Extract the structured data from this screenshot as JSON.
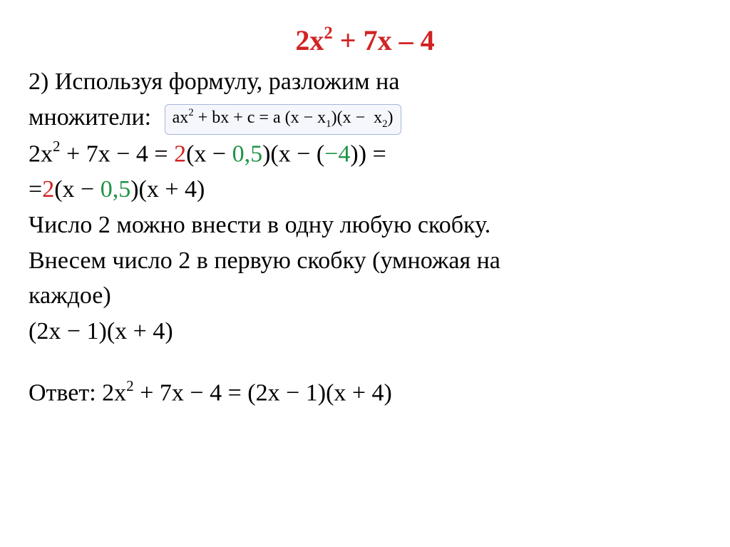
{
  "colors": {
    "red": "#d22323",
    "green": "#1f9346",
    "black": "#000000",
    "boxBorder": "#a8b8d8"
  },
  "titleEquation": {
    "fullColor": "#d22323",
    "parts": [
      "2x",
      "2",
      " + 7x – 4"
    ]
  },
  "intro": {
    "before": "2) Используя формулу, разложим на",
    "word": "множители:"
  },
  "formulaBox": {
    "text_html": "ax<sup>2</sup> + bx + c = a (x − x<sub>1</sub>)(x − &nbsp;x<sub>2</sub>)"
  },
  "step1": {
    "lhs": "2x",
    "lhs_exp": "2",
    "lhs_rest": " + 7x − 4 = ",
    "a": "2",
    "open1": "(x − ",
    "root1": "0,5",
    "close1": ")",
    "open2": "(x − (",
    "root2": "−4",
    "close2": ")) ="
  },
  "step2": {
    "eq": "=",
    "a": "2",
    "open1": "(x − ",
    "root1": "0,5",
    "close1": ")",
    "rest": "(x + 4)"
  },
  "explain1": "Число 2 можно внести в одну любую скобку.",
  "explain2": "Внесем число 2 в первую скобку (умножая на",
  "explain3": "каждое)",
  "simplified": "(2x − 1)(x + 4)",
  "answer": {
    "label": "Ответ: ",
    "lhs": "2x",
    "lhs_exp": "2",
    "lhs_rest": " + 7x − 4 = (2x − 1)(x + 4)"
  }
}
